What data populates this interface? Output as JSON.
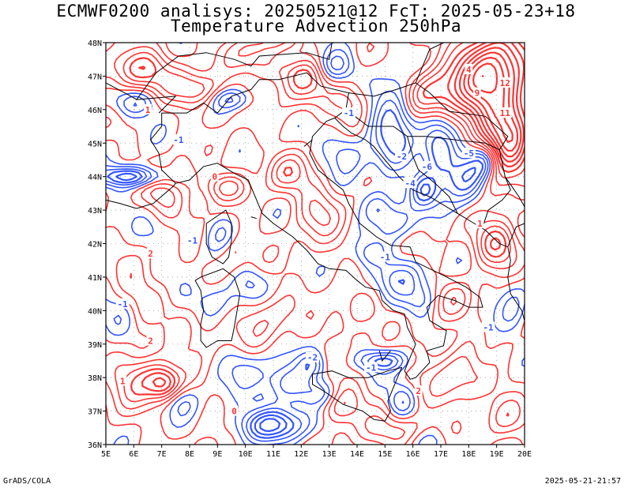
{
  "header": {
    "title_line1": "ECMWF0200 analisys: 20250521@12 FcT: 2025-05-23+18",
    "title_line2": "Temperature Advection 250hPa"
  },
  "map": {
    "lon_labels": [
      "5E",
      "6E",
      "7E",
      "8E",
      "9E",
      "10E",
      "11E",
      "12E",
      "13E",
      "14E",
      "15E",
      "16E",
      "17E",
      "18E",
      "19E",
      "20E"
    ],
    "lat_labels": [
      "48N",
      "47N",
      "46N",
      "45N",
      "44N",
      "43N",
      "42N",
      "41N",
      "40N",
      "39N",
      "38N",
      "37N",
      "36N"
    ],
    "lon_range": [
      5,
      20
    ],
    "lat_range": [
      36,
      48
    ],
    "contour_colors": {
      "warm": "#ff3333",
      "cold": "#3355ff",
      "coast": "#000000",
      "grid": "#999999"
    },
    "contour_labels": [
      {
        "text": "-1",
        "kind": "cold",
        "lon": 7.6,
        "lat": 45.1
      },
      {
        "text": "1",
        "kind": "warm",
        "lon": 6.5,
        "lat": 46.0
      },
      {
        "text": "0",
        "kind": "warm",
        "lon": 8.9,
        "lat": 44.0
      },
      {
        "text": "-1",
        "kind": "cold",
        "lon": 13.7,
        "lat": 45.9
      },
      {
        "text": "-2",
        "kind": "cold",
        "lon": 15.6,
        "lat": 44.6
      },
      {
        "text": "-6",
        "kind": "cold",
        "lon": 16.5,
        "lat": 44.3
      },
      {
        "text": "-5",
        "kind": "cold",
        "lon": 18.0,
        "lat": 44.7
      },
      {
        "text": "-4",
        "kind": "cold",
        "lon": 15.9,
        "lat": 43.8
      },
      {
        "text": "4",
        "kind": "warm",
        "lon": 18.0,
        "lat": 47.2
      },
      {
        "text": "12",
        "kind": "warm",
        "lon": 19.3,
        "lat": 46.8
      },
      {
        "text": "11",
        "kind": "warm",
        "lon": 19.3,
        "lat": 45.9
      },
      {
        "text": "9",
        "kind": "warm",
        "lon": 18.3,
        "lat": 46.5
      },
      {
        "text": "-1",
        "kind": "cold",
        "lon": 8.1,
        "lat": 42.1
      },
      {
        "text": "2",
        "kind": "warm",
        "lon": 6.6,
        "lat": 41.7
      },
      {
        "text": "-1",
        "kind": "cold",
        "lon": 5.6,
        "lat": 40.2
      },
      {
        "text": "2",
        "kind": "warm",
        "lon": 6.6,
        "lat": 39.1
      },
      {
        "text": "1",
        "kind": "warm",
        "lon": 5.6,
        "lat": 37.9
      },
      {
        "text": "-2",
        "kind": "cold",
        "lon": 12.4,
        "lat": 38.6
      },
      {
        "text": "-1",
        "kind": "cold",
        "lon": 14.5,
        "lat": 38.3
      },
      {
        "text": "2",
        "kind": "warm",
        "lon": 16.2,
        "lat": 37.6
      },
      {
        "text": "-1",
        "kind": "cold",
        "lon": 18.7,
        "lat": 39.5
      },
      {
        "text": "0",
        "kind": "warm",
        "lon": 9.6,
        "lat": 37.0
      },
      {
        "text": "-1",
        "kind": "cold",
        "lon": 15.0,
        "lat": 41.6
      },
      {
        "text": "1",
        "kind": "warm",
        "lon": 18.4,
        "lat": 42.6
      }
    ]
  },
  "footer": {
    "left": "GrADS/COLA",
    "right": "2025-05-21-21:57"
  }
}
